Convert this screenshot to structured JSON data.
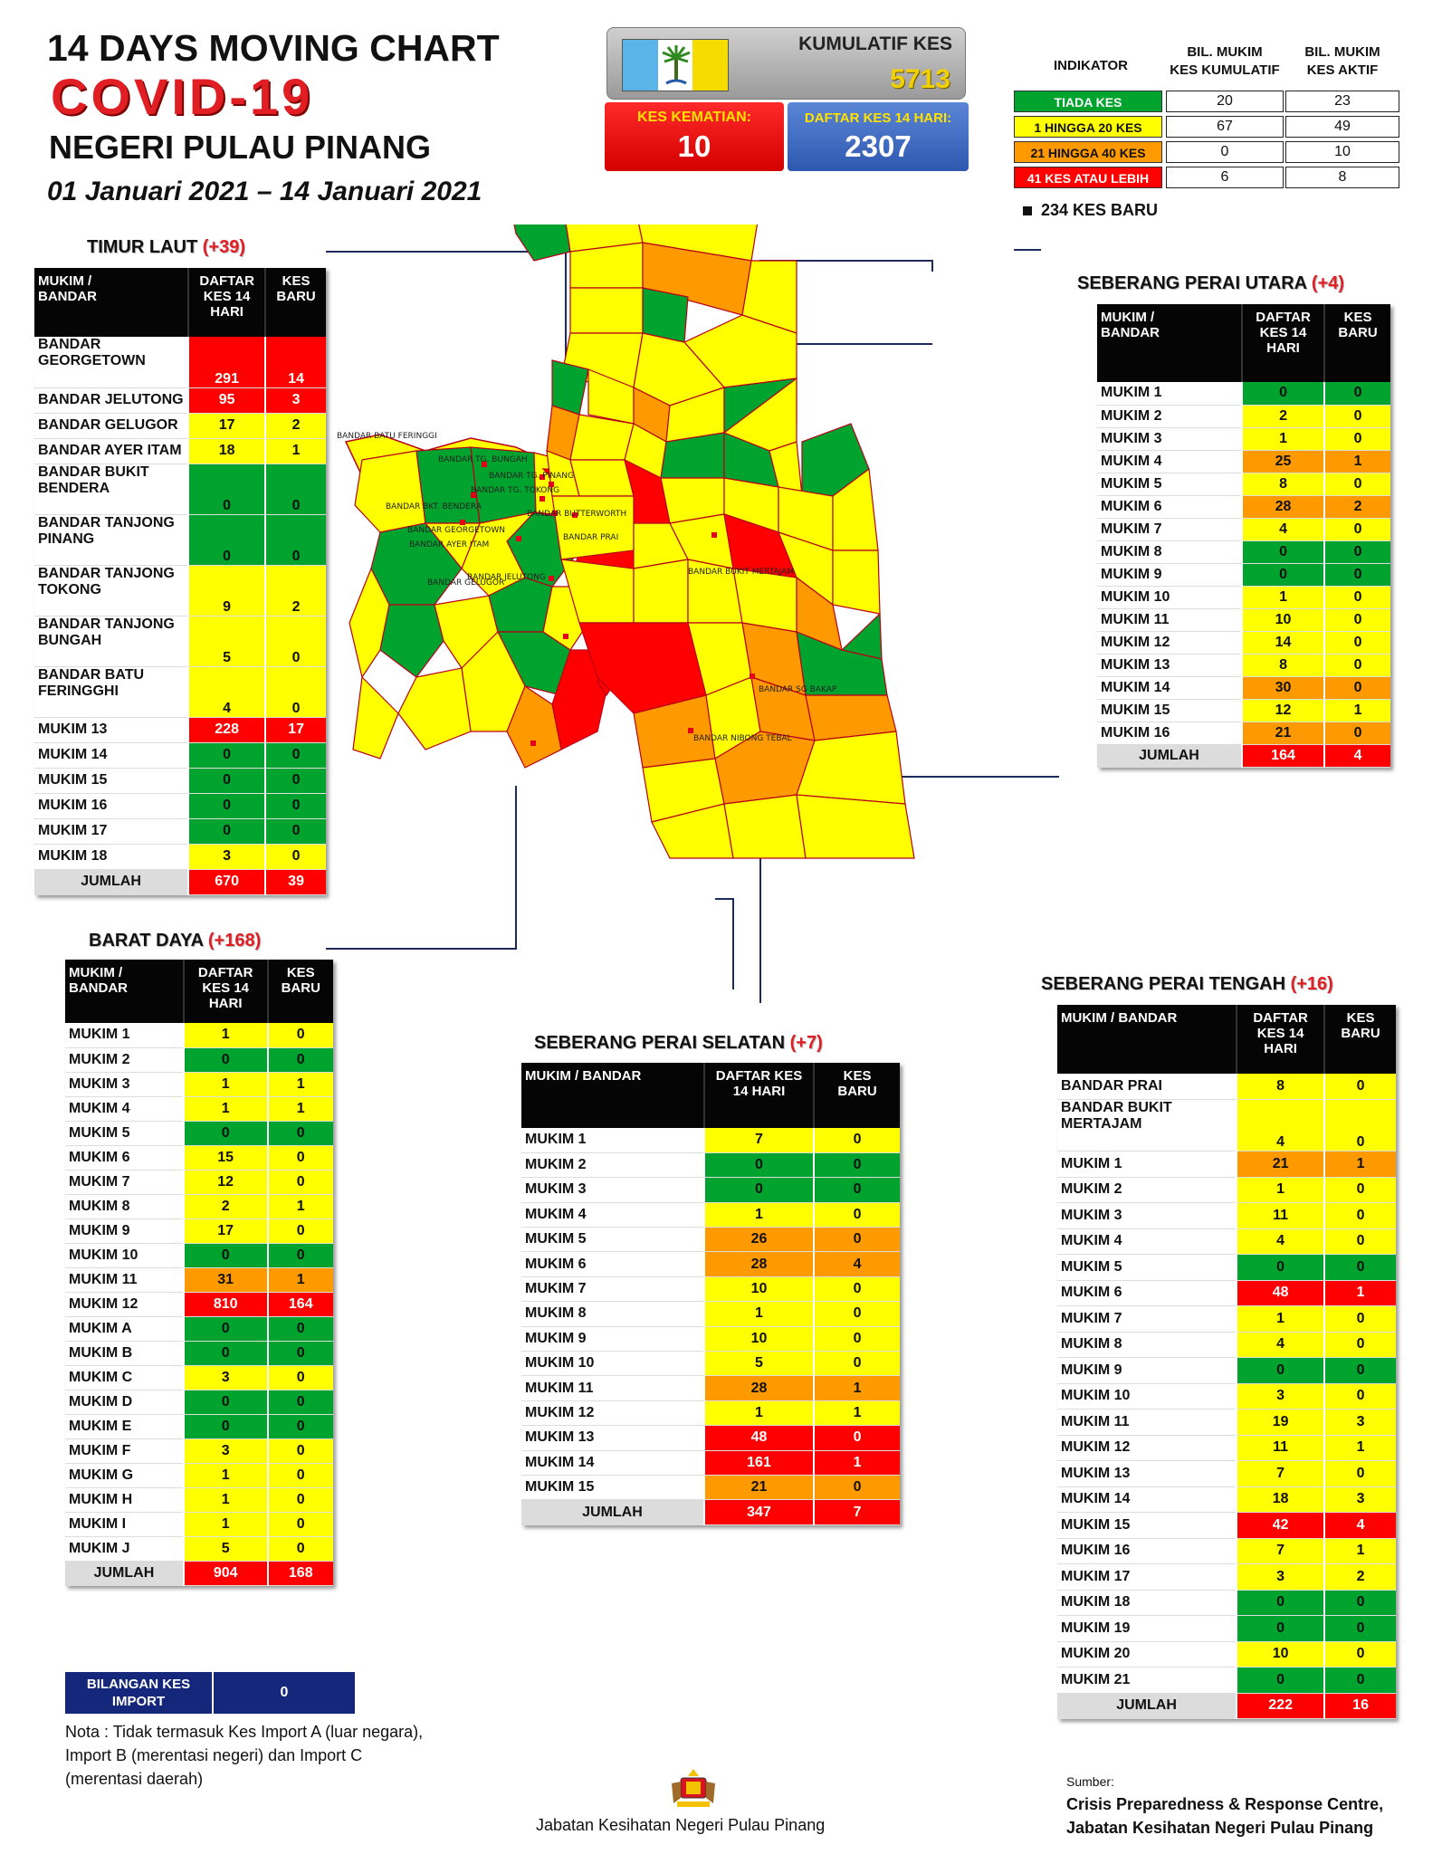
{
  "header": {
    "line1": "14  DAYS MOVING CHART",
    "line2": "COVID-19",
    "line3": "NEGERI PULAU PINANG",
    "date": "01 Januari 2021 – 14 Januari 2021"
  },
  "stats": {
    "cumulative_label": "KUMULATIF KES",
    "cumulative_value": "5713",
    "deaths_label": "KES KEMATIAN:",
    "deaths_value": "10",
    "list14_label": "DAFTAR KES 14 HARI:",
    "list14_value": "2307"
  },
  "indicator": {
    "header": "INDIKATOR",
    "col1": "BIL. MUKIM\nKES KUMULATIF",
    "col2": "BIL. MUKIM\nKES AKTIF",
    "rows": [
      {
        "label": "TIADA KES",
        "v1": "20",
        "v2": "23",
        "color": "#00a32e"
      },
      {
        "label": "1 HINGGA 20 KES",
        "v1": "67",
        "v2": "49",
        "color": "#ffff00"
      },
      {
        "label": "21 HINGGA 40 KES",
        "v1": "0",
        "v2": "10",
        "color": "#ff9900"
      },
      {
        "label": "41 KES ATAU LEBIH",
        "v1": "6",
        "v2": "8",
        "color": "#ff0000"
      }
    ],
    "new_cases": "234 KES BARU"
  },
  "timur_laut": {
    "name": "TIMUR LAUT",
    "inc": "(+39)",
    "h1": "MUKIM /\nBANDAR",
    "h2": "DAFTAR\nKES 14\nHARI",
    "h3": "KES\nBARU",
    "rows": [
      {
        "n": "BANDAR GEORGETOWN",
        "a": "291",
        "b": "14",
        "ca": "r",
        "cb": "r"
      },
      {
        "n": "BANDAR JELUTONG",
        "a": "95",
        "b": "3",
        "ca": "r",
        "cb": "r"
      },
      {
        "n": "BANDAR GELUGOR",
        "a": "17",
        "b": "2",
        "ca": "y",
        "cb": "y"
      },
      {
        "n": "BANDAR AYER ITAM",
        "a": "18",
        "b": "1",
        "ca": "y",
        "cb": "y"
      },
      {
        "n": "BANDAR BUKIT BENDERA",
        "a": "0",
        "b": "0",
        "ca": "g",
        "cb": "g"
      },
      {
        "n": "BANDAR TANJONG PINANG",
        "a": "0",
        "b": "0",
        "ca": "g",
        "cb": "g"
      },
      {
        "n": "BANDAR TANJONG TOKONG",
        "a": "9",
        "b": "2",
        "ca": "y",
        "cb": "y"
      },
      {
        "n": "BANDAR TANJONG BUNGAH",
        "a": "5",
        "b": "0",
        "ca": "y",
        "cb": "y"
      },
      {
        "n": "BANDAR BATU FERINGGHI",
        "a": "4",
        "b": "0",
        "ca": "y",
        "cb": "y"
      },
      {
        "n": "MUKIM 13",
        "a": "228",
        "b": "17",
        "ca": "r",
        "cb": "r"
      },
      {
        "n": "MUKIM 14",
        "a": "0",
        "b": "0",
        "ca": "g",
        "cb": "g"
      },
      {
        "n": "MUKIM 15",
        "a": "0",
        "b": "0",
        "ca": "g",
        "cb": "g"
      },
      {
        "n": "MUKIM 16",
        "a": "0",
        "b": "0",
        "ca": "g",
        "cb": "g"
      },
      {
        "n": "MUKIM 17",
        "a": "0",
        "b": "0",
        "ca": "g",
        "cb": "g"
      },
      {
        "n": "MUKIM 18",
        "a": "3",
        "b": "0",
        "ca": "y",
        "cb": "y"
      }
    ],
    "total_label": "JUMLAH",
    "total_a": "670",
    "total_b": "39"
  },
  "seberang_perai_utara": {
    "name": "SEBERANG PERAI UTARA",
    "inc": "(+4)",
    "h1": "MUKIM /\nBANDAR",
    "h2": "DAFTAR\nKES 14\nHARI",
    "h3": "KES\nBARU",
    "rows": [
      {
        "n": "MUKIM 1",
        "a": "0",
        "b": "0",
        "ca": "g",
        "cb": "g"
      },
      {
        "n": "MUKIM 2",
        "a": "2",
        "b": "0",
        "ca": "y",
        "cb": "y"
      },
      {
        "n": "MUKIM 3",
        "a": "1",
        "b": "0",
        "ca": "y",
        "cb": "y"
      },
      {
        "n": "MUKIM 4",
        "a": "25",
        "b": "1",
        "ca": "o",
        "cb": "o"
      },
      {
        "n": "MUKIM 5",
        "a": "8",
        "b": "0",
        "ca": "y",
        "cb": "y"
      },
      {
        "n": "MUKIM 6",
        "a": "28",
        "b": "2",
        "ca": "o",
        "cb": "o"
      },
      {
        "n": "MUKIM 7",
        "a": "4",
        "b": "0",
        "ca": "y",
        "cb": "y"
      },
      {
        "n": "MUKIM 8",
        "a": "0",
        "b": "0",
        "ca": "g",
        "cb": "g"
      },
      {
        "n": "MUKIM 9",
        "a": "0",
        "b": "0",
        "ca": "g",
        "cb": "g"
      },
      {
        "n": "MUKIM 10",
        "a": "1",
        "b": "0",
        "ca": "y",
        "cb": "y"
      },
      {
        "n": "MUKIM 11",
        "a": "10",
        "b": "0",
        "ca": "y",
        "cb": "y"
      },
      {
        "n": "MUKIM 12",
        "a": "14",
        "b": "0",
        "ca": "y",
        "cb": "y"
      },
      {
        "n": "MUKIM 13",
        "a": "8",
        "b": "0",
        "ca": "y",
        "cb": "y"
      },
      {
        "n": "MUKIM 14",
        "a": "30",
        "b": "0",
        "ca": "o",
        "cb": "o"
      },
      {
        "n": "MUKIM 15",
        "a": "12",
        "b": "1",
        "ca": "y",
        "cb": "y"
      },
      {
        "n": "MUKIM 16",
        "a": "21",
        "b": "0",
        "ca": "o",
        "cb": "o"
      }
    ],
    "total_label": "JUMLAH",
    "total_a": "164",
    "total_b": "4"
  },
  "barat_daya": {
    "name": "BARAT DAYA",
    "inc": "(+168)",
    "h1": "MUKIM /\nBANDAR",
    "h2": "DAFTAR\nKES 14\nHARI",
    "h3": "KES\nBARU",
    "rows": [
      {
        "n": "MUKIM 1",
        "a": "1",
        "b": "0",
        "ca": "y",
        "cb": "y"
      },
      {
        "n": "MUKIM 2",
        "a": "0",
        "b": "0",
        "ca": "g",
        "cb": "g"
      },
      {
        "n": "MUKIM 3",
        "a": "1",
        "b": "1",
        "ca": "y",
        "cb": "y"
      },
      {
        "n": "MUKIM 4",
        "a": "1",
        "b": "1",
        "ca": "y",
        "cb": "y"
      },
      {
        "n": "MUKIM 5",
        "a": "0",
        "b": "0",
        "ca": "g",
        "cb": "g"
      },
      {
        "n": "MUKIM 6",
        "a": "15",
        "b": "0",
        "ca": "y",
        "cb": "y"
      },
      {
        "n": "MUKIM 7",
        "a": "12",
        "b": "0",
        "ca": "y",
        "cb": "y"
      },
      {
        "n": "MUKIM 8",
        "a": "2",
        "b": "1",
        "ca": "y",
        "cb": "y"
      },
      {
        "n": "MUKIM 9",
        "a": "17",
        "b": "0",
        "ca": "y",
        "cb": "y"
      },
      {
        "n": "MUKIM 10",
        "a": "0",
        "b": "0",
        "ca": "g",
        "cb": "g"
      },
      {
        "n": "MUKIM 11",
        "a": "31",
        "b": "1",
        "ca": "o",
        "cb": "o"
      },
      {
        "n": "MUKIM 12",
        "a": "810",
        "b": "164",
        "ca": "r",
        "cb": "r"
      },
      {
        "n": "MUKIM A",
        "a": "0",
        "b": "0",
        "ca": "g",
        "cb": "g"
      },
      {
        "n": "MUKIM B",
        "a": "0",
        "b": "0",
        "ca": "g",
        "cb": "g"
      },
      {
        "n": "MUKIM C",
        "a": "3",
        "b": "0",
        "ca": "y",
        "cb": "y"
      },
      {
        "n": "MUKIM D",
        "a": "0",
        "b": "0",
        "ca": "g",
        "cb": "g"
      },
      {
        "n": "MUKIM E",
        "a": "0",
        "b": "0",
        "ca": "g",
        "cb": "g"
      },
      {
        "n": "MUKIM F",
        "a": "3",
        "b": "0",
        "ca": "y",
        "cb": "y"
      },
      {
        "n": "MUKIM G",
        "a": "1",
        "b": "0",
        "ca": "y",
        "cb": "y"
      },
      {
        "n": "MUKIM H",
        "a": "1",
        "b": "0",
        "ca": "y",
        "cb": "y"
      },
      {
        "n": "MUKIM I",
        "a": "1",
        "b": "0",
        "ca": "y",
        "cb": "y"
      },
      {
        "n": "MUKIM J",
        "a": "5",
        "b": "0",
        "ca": "y",
        "cb": "y"
      }
    ],
    "total_label": "JUMLAH",
    "total_a": "904",
    "total_b": "168"
  },
  "seberang_perai_selatan": {
    "name": "SEBERANG PERAI SELATAN",
    "inc": "(+7)",
    "h1": "MUKIM / BANDAR",
    "h2": "DAFTAR KES\n14 HARI",
    "h3": "KES\nBARU",
    "rows": [
      {
        "n": "MUKIM 1",
        "a": "7",
        "b": "0",
        "ca": "y",
        "cb": "y"
      },
      {
        "n": "MUKIM 2",
        "a": "0",
        "b": "0",
        "ca": "g",
        "cb": "g"
      },
      {
        "n": "MUKIM 3",
        "a": "0",
        "b": "0",
        "ca": "g",
        "cb": "g"
      },
      {
        "n": "MUKIM 4",
        "a": "1",
        "b": "0",
        "ca": "y",
        "cb": "y"
      },
      {
        "n": "MUKIM 5",
        "a": "26",
        "b": "0",
        "ca": "o",
        "cb": "o"
      },
      {
        "n": "MUKIM 6",
        "a": "28",
        "b": "4",
        "ca": "o",
        "cb": "o"
      },
      {
        "n": "MUKIM 7",
        "a": "10",
        "b": "0",
        "ca": "y",
        "cb": "y"
      },
      {
        "n": "MUKIM 8",
        "a": "1",
        "b": "0",
        "ca": "y",
        "cb": "y"
      },
      {
        "n": "MUKIM 9",
        "a": "10",
        "b": "0",
        "ca": "y",
        "cb": "y"
      },
      {
        "n": "MUKIM 10",
        "a": "5",
        "b": "0",
        "ca": "y",
        "cb": "y"
      },
      {
        "n": "MUKIM 11",
        "a": "28",
        "b": "1",
        "ca": "o",
        "cb": "o"
      },
      {
        "n": "MUKIM 12",
        "a": "1",
        "b": "1",
        "ca": "y",
        "cb": "y"
      },
      {
        "n": "MUKIM 13",
        "a": "48",
        "b": "0",
        "ca": "r",
        "cb": "r"
      },
      {
        "n": "MUKIM 14",
        "a": "161",
        "b": "1",
        "ca": "r",
        "cb": "r"
      },
      {
        "n": "MUKIM 15",
        "a": "21",
        "b": "0",
        "ca": "o",
        "cb": "o"
      }
    ],
    "total_label": "JUMLAH",
    "total_a": "347",
    "total_b": "7"
  },
  "seberang_perai_tengah": {
    "name": "SEBERANG PERAI TENGAH",
    "inc": "(+16)",
    "h1": "MUKIM / BANDAR",
    "h2": "DAFTAR\nKES 14\nHARI",
    "h3": "KES\nBARU",
    "rows": [
      {
        "n": "BANDAR PRAI",
        "a": "8",
        "b": "0",
        "ca": "y",
        "cb": "y"
      },
      {
        "n": "BANDAR BUKIT MERTAJAM",
        "a": "4",
        "b": "0",
        "ca": "y",
        "cb": "y"
      },
      {
        "n": "MUKIM 1",
        "a": "21",
        "b": "1",
        "ca": "o",
        "cb": "o"
      },
      {
        "n": "MUKIM 2",
        "a": "1",
        "b": "0",
        "ca": "y",
        "cb": "y"
      },
      {
        "n": "MUKIM 3",
        "a": "11",
        "b": "0",
        "ca": "y",
        "cb": "y"
      },
      {
        "n": "MUKIM 4",
        "a": "4",
        "b": "0",
        "ca": "y",
        "cb": "y"
      },
      {
        "n": "MUKIM 5",
        "a": "0",
        "b": "0",
        "ca": "g",
        "cb": "g"
      },
      {
        "n": "MUKIM 6",
        "a": "48",
        "b": "1",
        "ca": "r",
        "cb": "r"
      },
      {
        "n": "MUKIM 7",
        "a": "1",
        "b": "0",
        "ca": "y",
        "cb": "y"
      },
      {
        "n": "MUKIM 8",
        "a": "4",
        "b": "0",
        "ca": "y",
        "cb": "y"
      },
      {
        "n": "MUKIM 9",
        "a": "0",
        "b": "0",
        "ca": "g",
        "cb": "g"
      },
      {
        "n": "MUKIM 10",
        "a": "3",
        "b": "0",
        "ca": "y",
        "cb": "y"
      },
      {
        "n": "MUKIM 11",
        "a": "19",
        "b": "3",
        "ca": "y",
        "cb": "y"
      },
      {
        "n": "MUKIM 12",
        "a": "11",
        "b": "1",
        "ca": "y",
        "cb": "y"
      },
      {
        "n": "MUKIM 13",
        "a": "7",
        "b": "0",
        "ca": "y",
        "cb": "y"
      },
      {
        "n": "MUKIM 14",
        "a": "18",
        "b": "3",
        "ca": "y",
        "cb": "y"
      },
      {
        "n": "MUKIM 15",
        "a": "42",
        "b": "4",
        "ca": "r",
        "cb": "r"
      },
      {
        "n": "MUKIM 16",
        "a": "7",
        "b": "1",
        "ca": "y",
        "cb": "y"
      },
      {
        "n": "MUKIM 17",
        "a": "3",
        "b": "2",
        "ca": "y",
        "cb": "y"
      },
      {
        "n": "MUKIM 18",
        "a": "0",
        "b": "0",
        "ca": "g",
        "cb": "g"
      },
      {
        "n": "MUKIM 19",
        "a": "0",
        "b": "0",
        "ca": "g",
        "cb": "g"
      },
      {
        "n": "MUKIM 20",
        "a": "10",
        "b": "0",
        "ca": "y",
        "cb": "y"
      },
      {
        "n": "MUKIM 21",
        "a": "0",
        "b": "0",
        "ca": "g",
        "cb": "g"
      }
    ],
    "total_label": "JUMLAH",
    "total_a": "222",
    "total_b": "16"
  },
  "map_labels": {
    "batu_feringgi": "BANDAR BATU FERINGGI",
    "tg_bungah": "BANDAR TG. BUNGAH",
    "tg_pinang": "BANDAR TG. PINANG",
    "tg_tokong": "BANDAR TG. TOKONG",
    "bkt_bendera": "BANDAR BKT. BENDERA",
    "georgetown": "BANDAR GEORGETOWN",
    "ayer_itam": "BANDAR AYER ITAM",
    "jelutong": "BANDAR JELUTONG",
    "gelugor": "BANDAR GELUGOR",
    "butterworth": "BANDAR BUTTERWORTH",
    "prai": "BANDAR PRAI",
    "bkt_mertajam": "BANDAR BUKIT MERTAJAM",
    "sg_bakap": "BANDAR SG BAKAP",
    "nibong_tebal": "BANDAR NIBONG TEBAL"
  },
  "import": {
    "label": "BILANGAN KES IMPORT",
    "value": "0"
  },
  "nota": "Nota : Tidak termasuk Kes Import A (luar negara), Import B (merentasi negeri) dan Import C (merentasi daerah)",
  "footer": {
    "department": "Jabatan Kesihatan Negeri Pulau Pinang",
    "source_label": "Sumber:",
    "source_line1": "Crisis Preparedness & Response Centre,",
    "source_line2": "Jabatan Kesihatan Negeri Pulau Pinang"
  },
  "colors": {
    "green": "#00a32e",
    "yellow": "#ffff00",
    "orange": "#ff9900",
    "red": "#ff0000"
  }
}
